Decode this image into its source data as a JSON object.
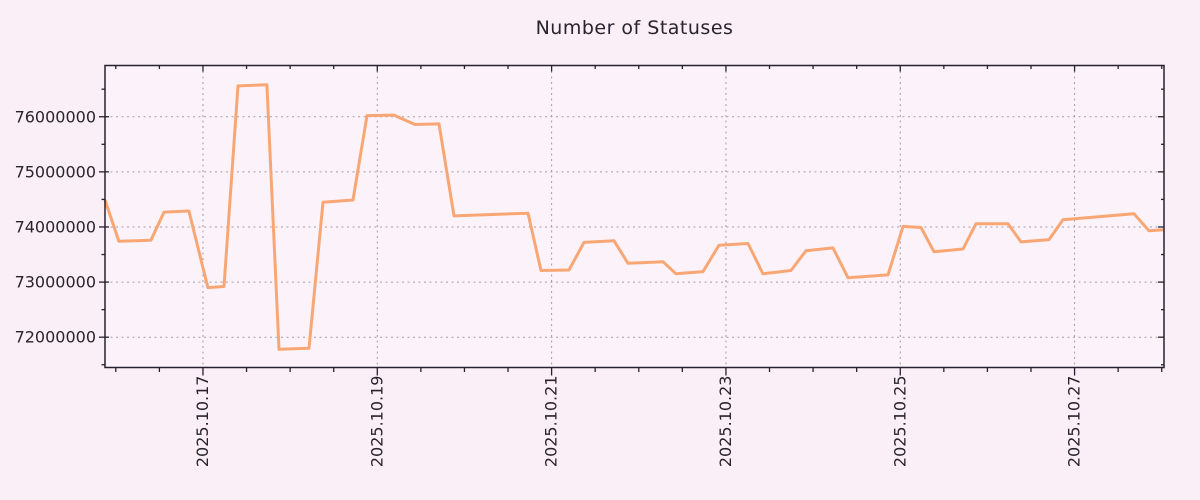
{
  "chart_data": {
    "type": "line",
    "title": "Number of Statuses",
    "series": [
      {
        "name": "statuses",
        "x_unit": "days_since_2025-10-15_00:00",
        "points": [
          [
            0.876,
            74490000
          ],
          [
            1.036,
            73740000
          ],
          [
            1.403,
            73760000
          ],
          [
            1.553,
            74270000
          ],
          [
            1.839,
            74290000
          ],
          [
            2.057,
            72900000
          ],
          [
            2.241,
            72920000
          ],
          [
            2.402,
            76560000
          ],
          [
            2.734,
            76580000
          ],
          [
            2.872,
            71780000
          ],
          [
            3.216,
            71800000
          ],
          [
            3.377,
            74450000
          ],
          [
            3.721,
            74490000
          ],
          [
            3.882,
            76020000
          ],
          [
            4.191,
            76030000
          ],
          [
            4.432,
            75860000
          ],
          [
            4.708,
            75870000
          ],
          [
            4.88,
            74200000
          ],
          [
            5.729,
            74250000
          ],
          [
            5.878,
            73210000
          ],
          [
            6.199,
            73220000
          ],
          [
            6.372,
            73720000
          ],
          [
            6.716,
            73750000
          ],
          [
            6.876,
            73340000
          ],
          [
            7.278,
            73370000
          ],
          [
            7.427,
            73150000
          ],
          [
            7.737,
            73190000
          ],
          [
            7.92,
            73670000
          ],
          [
            8.253,
            73700000
          ],
          [
            8.425,
            73150000
          ],
          [
            8.747,
            73210000
          ],
          [
            8.919,
            73570000
          ],
          [
            9.228,
            73620000
          ],
          [
            9.4,
            73080000
          ],
          [
            9.859,
            73130000
          ],
          [
            10.032,
            74010000
          ],
          [
            10.238,
            73990000
          ],
          [
            10.387,
            73550000
          ],
          [
            10.72,
            73600000
          ],
          [
            10.869,
            74060000
          ],
          [
            11.236,
            74060000
          ],
          [
            11.385,
            73730000
          ],
          [
            11.707,
            73770000
          ],
          [
            11.867,
            74130000
          ],
          [
            12.682,
            74240000
          ],
          [
            12.854,
            73930000
          ],
          [
            13.026,
            73950000
          ]
        ]
      }
    ],
    "xlim": [
      0.876,
      13.026
    ],
    "ylim": [
      71450000,
      76930000
    ],
    "x_major_ticks": [
      {
        "t": 2,
        "label": "2025.10.17"
      },
      {
        "t": 4,
        "label": "2025.10.19"
      },
      {
        "t": 6,
        "label": "2025.10.21"
      },
      {
        "t": 8,
        "label": "2025.10.23"
      },
      {
        "t": 10,
        "label": "2025.10.25"
      },
      {
        "t": 12,
        "label": "2025.10.27"
      }
    ],
    "x_minor_step": 0.5,
    "y_major_ticks": [
      {
        "v": 72000000,
        "label": "72000000"
      },
      {
        "v": 73000000,
        "label": "73000000"
      },
      {
        "v": 74000000,
        "label": "74000000"
      },
      {
        "v": 75000000,
        "label": "75000000"
      },
      {
        "v": 76000000,
        "label": "76000000"
      }
    ],
    "y_minor_step": 500000,
    "grid": true,
    "legend_position": "none",
    "x_label_rotation": -90,
    "colors": {
      "line": "#f8a774",
      "grid": "#a49da7",
      "axis": "#262130",
      "text": "#29232e",
      "plot_bg": "#fcf2fa",
      "page_bg": "#faeff7"
    }
  }
}
